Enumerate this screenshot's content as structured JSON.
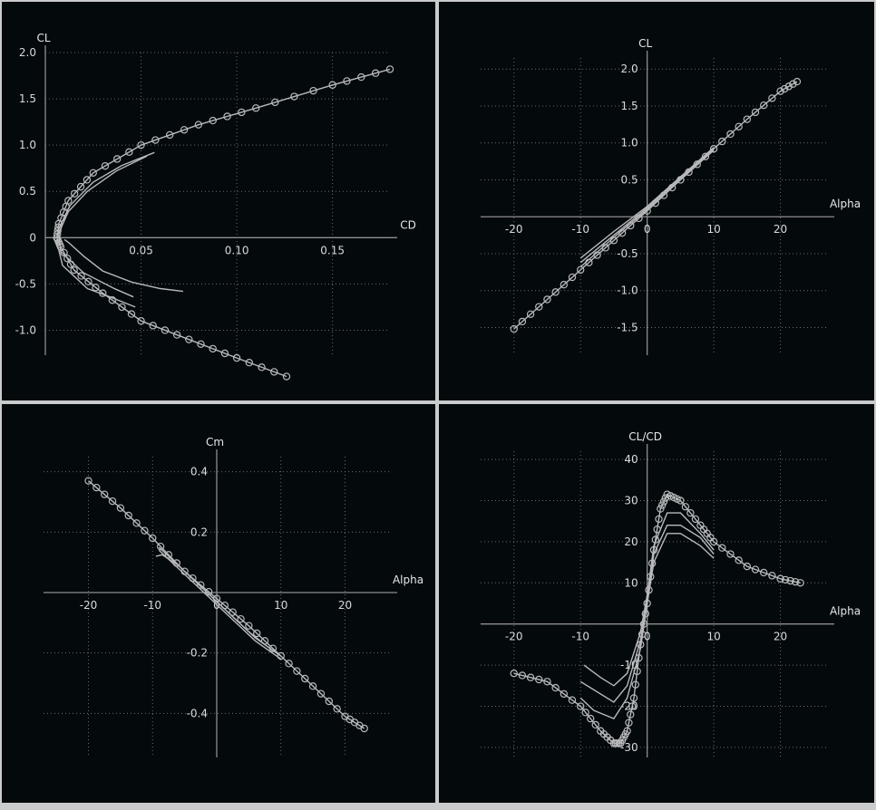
{
  "colors": {
    "background": "#04090c",
    "separator": "#c9cbcd",
    "axis": "#8c8e90",
    "grid": "#6a6c6e",
    "curve": "#b8b9bb",
    "text": "#d8dadc"
  },
  "chart_data": [
    {
      "id": "polar",
      "type": "line",
      "xlabel": "CD",
      "ylabel": "CL",
      "xlim": [
        0,
        0.18
      ],
      "ylim": [
        -1.25,
        2.0
      ],
      "xticks": [
        0.05,
        0.1,
        0.15
      ],
      "xtick_labels": [
        "0.05",
        "0.10",
        "0.15"
      ],
      "yticks": [
        -1.0,
        -0.5,
        0,
        0.5,
        1.0,
        1.5,
        2.0
      ],
      "ytick_labels": [
        "-1.0",
        "-0.5",
        "0",
        "0.5",
        "1.0",
        "1.5",
        "2.0"
      ],
      "grid": true,
      "series": [
        {
          "markers": true,
          "x": [
            0.126,
            0.1,
            0.075,
            0.05,
            0.03,
            0.015,
            0.008,
            0.006,
            0.007,
            0.012,
            0.025,
            0.05,
            0.08,
            0.11,
            0.15,
            0.18
          ],
          "y": [
            -1.5,
            -1.3,
            -1.1,
            -0.9,
            -0.6,
            -0.35,
            -0.1,
            0,
            0.15,
            0.4,
            0.7,
            1.0,
            1.22,
            1.4,
            1.65,
            1.82
          ]
        },
        {
          "markers": false,
          "x": [
            0.057,
            0.04,
            0.025,
            0.013,
            0.007,
            0.006,
            0.009,
            0.022,
            0.035,
            0.047
          ],
          "y": [
            0.92,
            0.78,
            0.6,
            0.35,
            0.1,
            -0.05,
            -0.3,
            -0.55,
            -0.65,
            -0.75
          ]
        },
        {
          "markers": false,
          "x": [
            0.053,
            0.037,
            0.022,
            0.012,
            0.007,
            0.008,
            0.02,
            0.036,
            0.046
          ],
          "y": [
            0.88,
            0.72,
            0.5,
            0.28,
            0.05,
            -0.15,
            -0.38,
            -0.55,
            -0.64
          ]
        },
        {
          "markers": false,
          "x": [
            0.01,
            0.012,
            0.02,
            0.03,
            0.045,
            0.06,
            0.072
          ],
          "y": [
            -0.02,
            -0.05,
            -0.2,
            -0.36,
            -0.48,
            -0.55,
            -0.58
          ]
        }
      ]
    },
    {
      "id": "cl_alpha",
      "type": "line",
      "xlabel": "Alpha",
      "ylabel": "CL",
      "xlim": [
        -25,
        27
      ],
      "ylim": [
        -1.85,
        2.15
      ],
      "xticks": [
        -20,
        -10,
        0,
        10,
        20
      ],
      "xtick_labels": [
        "-20",
        "-10",
        "0",
        "10",
        "20"
      ],
      "yticks": [
        -1.5,
        -1.0,
        -0.5,
        0.5,
        1.0,
        1.5,
        2.0
      ],
      "ytick_labels": [
        "-1.5",
        "-1.0",
        "-0.5",
        "0.5",
        "1.0",
        "1.5",
        "2.0"
      ],
      "grid": true,
      "series": [
        {
          "markers": true,
          "x": [
            -20,
            -15,
            -10,
            -5,
            0,
            5,
            10,
            15,
            20,
            22.5
          ],
          "y": [
            -1.52,
            -1.12,
            -0.72,
            -0.32,
            0.08,
            0.5,
            0.92,
            1.32,
            1.7,
            1.83
          ]
        },
        {
          "markers": false,
          "x": [
            -10,
            -5,
            0,
            5,
            10
          ],
          "y": [
            -0.68,
            -0.28,
            0.1,
            0.5,
            0.9
          ]
        },
        {
          "markers": false,
          "x": [
            -10,
            -5,
            0,
            5,
            10
          ],
          "y": [
            -0.62,
            -0.25,
            0.12,
            0.52,
            0.92
          ]
        },
        {
          "markers": false,
          "x": [
            -10,
            -5,
            0,
            5,
            10
          ],
          "y": [
            -0.56,
            -0.2,
            0.14,
            0.54,
            0.94
          ]
        }
      ]
    },
    {
      "id": "cm_alpha",
      "type": "line",
      "xlabel": "Alpha",
      "ylabel": "Cm",
      "xlim": [
        -27,
        27
      ],
      "ylim": [
        -0.54,
        0.45
      ],
      "xticks": [
        -20,
        -10,
        0,
        10,
        20
      ],
      "xtick_labels": [
        "-20",
        "-10",
        "0",
        "10",
        "20"
      ],
      "yticks": [
        -0.4,
        -0.2,
        0.2,
        0.4
      ],
      "ytick_labels": [
        "-0.4",
        "-0.2",
        "0.2",
        "0.4"
      ],
      "grid": true,
      "series": [
        {
          "markers": true,
          "x": [
            -20,
            -15,
            -10,
            -5,
            0,
            5,
            10,
            15,
            20,
            23
          ],
          "y": [
            0.37,
            0.28,
            0.18,
            0.07,
            -0.02,
            -0.11,
            -0.21,
            -0.31,
            -0.41,
            -0.45
          ]
        },
        {
          "markers": false,
          "x": [
            -9.5,
            -8.5,
            -6,
            -3,
            0,
            3,
            5,
            8,
            10
          ],
          "y": [
            0.12,
            0.125,
            0.09,
            0.03,
            -0.03,
            -0.09,
            -0.13,
            -0.18,
            -0.21
          ]
        },
        {
          "markers": false,
          "x": [
            -9,
            -6,
            -3,
            0,
            3,
            6,
            10
          ],
          "y": [
            0.14,
            0.08,
            0.02,
            -0.04,
            -0.1,
            -0.16,
            -0.22
          ]
        },
        {
          "markers": false,
          "x": [
            -9,
            -6,
            -3,
            0,
            3,
            6,
            10
          ],
          "y": [
            0.15,
            0.09,
            0.03,
            -0.03,
            -0.09,
            -0.15,
            -0.21
          ]
        }
      ]
    },
    {
      "id": "clcd_alpha",
      "type": "line",
      "xlabel": "Alpha",
      "ylabel": "CL/CD",
      "xlim": [
        -25,
        27
      ],
      "ylim": [
        -32,
        42
      ],
      "xticks": [
        -20,
        -10,
        0,
        10,
        20
      ],
      "xtick_labels": [
        "-20",
        "-10",
        "0",
        "10",
        "20"
      ],
      "yticks": [
        -30,
        -20,
        -10,
        10,
        20,
        30,
        40
      ],
      "ytick_labels": [
        "-30",
        "-20",
        "-10",
        "10",
        "20",
        "30",
        "40"
      ],
      "grid": true,
      "series": [
        {
          "markers": true,
          "x": [
            -20,
            -15,
            -10,
            -7,
            -5,
            -4,
            -3,
            -2,
            -1,
            0,
            1,
            2,
            3,
            5,
            8,
            10,
            15,
            20,
            23
          ],
          "y": [
            -12,
            -14,
            -20,
            -26,
            -29,
            -29,
            -26,
            -18,
            -5,
            5,
            18,
            28,
            31.5,
            30,
            24,
            20,
            14,
            11,
            10
          ]
        },
        {
          "markers": false,
          "x": [
            -10,
            -8,
            -5,
            -3,
            -1,
            0,
            1,
            3,
            5,
            8,
            10
          ],
          "y": [
            -18,
            -21,
            -23,
            -18,
            -6,
            5,
            15,
            22,
            22,
            19,
            16
          ]
        },
        {
          "markers": false,
          "x": [
            -10,
            -8,
            -5,
            -3,
            -1,
            0,
            1,
            3,
            5,
            8,
            10
          ],
          "y": [
            -14,
            -16,
            -19,
            -15,
            -4,
            6,
            17,
            24,
            24,
            21,
            17
          ]
        },
        {
          "markers": false,
          "x": [
            -9.5,
            -7,
            -5,
            -3,
            -1,
            0,
            1,
            3,
            5,
            8,
            10
          ],
          "y": [
            -10,
            -13,
            -15,
            -12,
            -2,
            7,
            19,
            27,
            27,
            22,
            18
          ]
        }
      ]
    }
  ]
}
